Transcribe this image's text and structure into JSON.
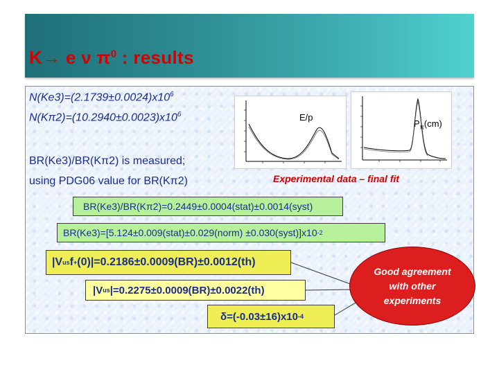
{
  "slide": {
    "title_main": "K→ e ν π",
    "title_sup": "0",
    "title_rest": " : results"
  },
  "counts": {
    "ke3_text": "N(Ke3)=(2.1739±0.0024)x10",
    "ke3_exp": "6",
    "kpi2_text": "N(Kπ2)=(10.2940±0.0023)x10",
    "kpi2_exp": "6"
  },
  "measurement": {
    "line1": "BR(Ke3)/BR(Kπ2) is measured;",
    "line2": "using PDG06 value for BR(Kπ2)"
  },
  "plots": {
    "left_label": "E/p",
    "right_label_main": "P",
    "right_label_sub": "π",
    "right_label_rest": "(cm)",
    "caption": "Experimental data – final fit"
  },
  "results": {
    "ratio": "BR(Ke3)/BR(Kπ2)=0.2449±0.0004(stat)±0.0014(syst)",
    "br_text": "BR(Ke3)=[5.124±0.009(stat)±0.029(norm) ±0.030(syst)]x10",
    "br_exp": "-2",
    "vus_f_pre": "|V",
    "vus_f_sub": "us",
    "vus_f_mid": " f",
    "vus_f_sub2": "+",
    "vus_f_post": "(0)|=0.2186±0.0009(BR)±0.0012(th)",
    "vus_pre": "|V",
    "vus_sub": "us",
    "vus_post": "|=0.2275±0.0009(BR)±0.0022(th)",
    "delta_text": "δ=(-0.03±16)x10",
    "delta_exp": "-4"
  },
  "agreement": {
    "text": "Good agreement\nwith other\nexperiments"
  },
  "colors": {
    "title": "#d40000",
    "body_text": "#1a2c8e",
    "green_box": "#b6f19a",
    "yellow_box": "#efef55",
    "light_yellow_box": "#ffffa0",
    "ellipse": "#dd1e1e"
  }
}
